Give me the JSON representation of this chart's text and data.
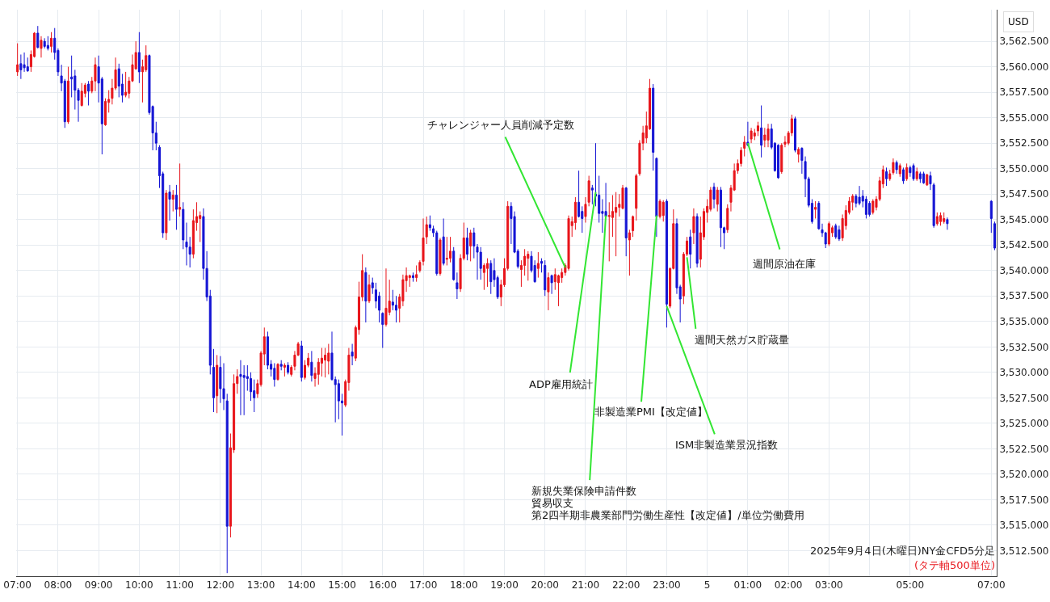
{
  "chart_data": {
    "type": "candlestick",
    "ylabel": "USD",
    "colors": [
      "#e8151b",
      "#1414d4",
      "#1414d4",
      "#1414d4",
      "#e8151b",
      "#e8151b",
      "#1414d4",
      "#e8151b",
      "#1414d4",
      "#1414d4",
      "#e8151b",
      "#1414d4",
      "#1414d4",
      "#1414d4",
      "#1414d4",
      "#e8151b",
      "#1414d4",
      "#1414d4",
      "#1414d4",
      "#e8151b",
      "#e8151b",
      "#1414d4",
      "#e8151b",
      "#e8151b",
      "#1414d4",
      "#1414d4",
      "#e8151b",
      "#e8151b",
      "#e8151b",
      "#e8151b",
      "#1414d4",
      "#1414d4",
      "#e8151b",
      "#e8151b",
      "#e8151b",
      "#e8151b",
      "#1414d4",
      "#e8151b",
      "#e8151b",
      "#1414d4",
      "#1414d4",
      "#1414d4",
      "#1414d4",
      "#1414d4",
      "#e8151b",
      "#1414d4",
      "#e8151b",
      "#1414d4",
      "#e8151b",
      "#1414d4",
      "#1414d4",
      "#1414d4",
      "#e8151b",
      "#e8151b",
      "#e8151b",
      "#1414d4",
      "#1414d4",
      "#1414d4",
      "#1414d4",
      "#e8151b",
      "#1414d4",
      "#1414d4",
      "#1414d4",
      "#e8151b",
      "#e8151b",
      "#e8151b",
      "#1414d4",
      "#1414d4",
      "#1414d4",
      "#1414d4",
      "#1414d4",
      "#e8151b",
      "#e8151b",
      "#e8151b",
      "#1414d4",
      "#1414d4",
      "#1414d4",
      "#e8151b",
      "#1414d4",
      "#e8151b",
      "#1414d4",
      "#e8151b",
      "#e8151b",
      "#e8151b",
      "#1414d4",
      "#e8151b",
      "#e8151b",
      "#1414d4",
      "#e8151b",
      "#e8151b",
      "#e8151b",
      "#e8151b",
      "#e8151b",
      "#1414d4",
      "#1414d4",
      "#1414d4",
      "#1414d4",
      "#e8151b",
      "#e8151b",
      "#1414d4",
      "#e8151b",
      "#e8151b",
      "#e8151b",
      "#1414d4",
      "#e8151b",
      "#1414d4",
      "#1414d4",
      "#1414d4",
      "#1414d4",
      "#e8151b",
      "#e8151b",
      "#1414d4",
      "#1414d4",
      "#e8151b",
      "#e8151b",
      "#e8151b",
      "#e8151b",
      "#1414d4",
      "#e8151b",
      "#e8151b",
      "#e8151b",
      "#e8151b",
      "#1414d4",
      "#1414d4",
      "#1414d4",
      "#e8151b",
      "#1414d4",
      "#e8151b",
      "#e8151b",
      "#1414d4",
      "#1414d4",
      "#e8151b",
      "#e8151b",
      "#1414d4",
      "#e8151b",
      "#1414d4",
      "#1414d4",
      "#1414d4",
      "#e8151b",
      "#e8151b",
      "#1414d4",
      "#1414d4",
      "#1414d4",
      "#e8151b",
      "#e8151b",
      "#e8151b",
      "#1414d4",
      "#1414d4",
      "#1414d4",
      "#e8151b",
      "#e8151b",
      "#e8151b",
      "#1414d4",
      "#1414d4",
      "#e8151b",
      "#1414d4",
      "#1414d4",
      "#e8151b",
      "#1414d4",
      "#e8151b",
      "#e8151b",
      "#e8151b",
      "#e8151b",
      "#e8151b",
      "#e8151b",
      "#e8151b",
      "#1414d4",
      "#1414d4",
      "#e8151b",
      "#e8151b",
      "#1414d4",
      "#1414d4",
      "#1414d4",
      "#1414d4",
      "#1414d4",
      "#e8151b",
      "#e8151b",
      "#e8151b",
      "#e8151b",
      "#e8151b",
      "#1414d4",
      "#e8151b",
      "#e8151b",
      "#e8151b",
      "#e8151b",
      "#e8151b",
      "#e8151b",
      "#e8151b",
      "#1414d4",
      "#1414d4",
      "#e8151b",
      "#e8151b",
      "#1414d4",
      "#e8151b",
      "#e8151b",
      "#1414d4",
      "#1414d4",
      "#e8151b",
      "#e8151b",
      "#1414d4",
      "#e8151b",
      "#1414d4",
      "#e8151b",
      "#e8151b",
      "#e8151b",
      "#e8151b",
      "#1414d4",
      "#e8151b",
      "#1414d4",
      "#1414d4",
      "#e8151b",
      "#e8151b",
      "#e8151b",
      "#e8151b",
      "#e8151b",
      "#e8151b",
      "#1414d4",
      "#e8151b",
      "#e8151b",
      "#e8151b",
      "#1414d4",
      "#e8151b",
      "#e8151b",
      "#1414d4",
      "#1414d4",
      "#1414d4",
      "#e8151b",
      "#e8151b",
      "#e8151b",
      "#e8151b",
      "#1414d4",
      "#e8151b",
      "#1414d4",
      "#1414d4",
      "#1414d4",
      "#1414d4",
      "#e8151b",
      "#1414d4",
      "#1414d4",
      "#1414d4",
      "#e8151b",
      "#e8151b",
      "#1414d4",
      "#1414d4",
      "#e8151b",
      "#e8151b",
      "#e8151b",
      "#e8151b",
      "#1414d4",
      "#1414d4",
      "#1414d4",
      "#1414d4",
      "#1414d4",
      "#e8151b",
      "#e8151b",
      "#e8151b",
      "#e8151b",
      "#1414d4",
      "#e8151b",
      "#e8151b",
      "#1414d4",
      "#e8151b",
      "#1414d4",
      "#e8151b",
      "#1414d4",
      "#1414d4",
      "#e8151b",
      "#1414d4",
      "#1414d4",
      "#e8151b",
      "#1414d4",
      "#1414d4",
      "#e8151b",
      "#e8151b",
      "#e8151b",
      "#1414d4",
      "#1414d4",
      "#1414d4"
    ],
    "grid": true,
    "xlim": [
      "2025-09-04T06:58",
      "2025-09-05T07:08"
    ],
    "ylim": [
      3510.0,
      3565.6
    ],
    "xticks": [
      {
        "value": "2025-09-04T07:00",
        "label": "07:00"
      },
      {
        "value": "2025-09-04T08:00",
        "label": "08:00"
      },
      {
        "value": "2025-09-04T09:00",
        "label": "09:00"
      },
      {
        "value": "2025-09-04T10:00",
        "label": "10:00"
      },
      {
        "value": "2025-09-04T11:00",
        "label": "11:00"
      },
      {
        "value": "2025-09-04T12:00",
        "label": "12:00"
      },
      {
        "value": "2025-09-04T13:00",
        "label": "13:00"
      },
      {
        "value": "2025-09-04T14:00",
        "label": "14:00"
      },
      {
        "value": "2025-09-04T15:00",
        "label": "15:00"
      },
      {
        "value": "2025-09-04T16:00",
        "label": "16:00"
      },
      {
        "value": "2025-09-04T17:00",
        "label": "17:00"
      },
      {
        "value": "2025-09-04T18:00",
        "label": "18:00"
      },
      {
        "value": "2025-09-04T19:00",
        "label": "19:00"
      },
      {
        "value": "2025-09-04T20:00",
        "label": "20:00"
      },
      {
        "value": "2025-09-04T21:00",
        "label": "21:00"
      },
      {
        "value": "2025-09-04T22:00",
        "label": "22:00"
      },
      {
        "value": "2025-09-04T23:00",
        "label": "23:00"
      },
      {
        "value": "2025-09-05T00:00",
        "label": "5"
      },
      {
        "value": "2025-09-05T01:00",
        "label": "01:00"
      },
      {
        "value": "2025-09-05T02:00",
        "label": "02:00"
      },
      {
        "value": "2025-09-05T03:00",
        "label": "03:00"
      },
      {
        "value": "2025-09-05T04:00",
        "label": null
      },
      {
        "value": "2025-09-05T05:00",
        "label": "05:00"
      },
      {
        "value": "2025-09-05T07:00",
        "label": "07:00"
      }
    ],
    "yticks": [
      {
        "value": 3512.5,
        "label": "3,512.500"
      },
      {
        "value": 3515,
        "label": "3,515.000"
      },
      {
        "value": 3517.5,
        "label": "3,517.500"
      },
      {
        "value": 3520,
        "label": "3,520.000"
      },
      {
        "value": 3522.5,
        "label": "3,522.500"
      },
      {
        "value": 3525,
        "label": "3,525.000"
      },
      {
        "value": 3527.5,
        "label": "3,527.500"
      },
      {
        "value": 3530,
        "label": "3,530.000"
      },
      {
        "value": 3532.5,
        "label": "3,532.500"
      },
      {
        "value": 3535,
        "label": "3,535.000"
      },
      {
        "value": 3537.5,
        "label": "3,537.500"
      },
      {
        "value": 3540,
        "label": "3,540.000"
      },
      {
        "value": 3542.5,
        "label": "3,542.500"
      },
      {
        "value": 3545,
        "label": "3,545.000"
      },
      {
        "value": 3547.5,
        "label": "3,547.500"
      },
      {
        "value": 3550,
        "label": "3,550.000"
      },
      {
        "value": 3552.5,
        "label": "3,552.500"
      },
      {
        "value": 3555,
        "label": "3,555.000"
      },
      {
        "value": 3557.5,
        "label": "3,557.500"
      },
      {
        "value": 3560,
        "label": "3,560.000"
      },
      {
        "value": 3562.5,
        "label": "3,562.500"
      }
    ],
    "annotations": [
      "2025年9月4日(木曜日)NY金CFD5分足",
      "(タテ軸500単位)",
      {
        "text": "チャレンジャー人員削減予定数",
        "x": "2025-09-04T20:30",
        "y": 3540.3
      },
      {
        "text": "ADP雇用統計",
        "x": "2025-09-04T21:15",
        "y": 3547.7
      },
      {
        "text": "新規失業保険申請件数",
        "x": "2025-09-04T21:30",
        "y": 3545.4
      },
      "貿易収支",
      "第2四半期非農業部門労働生産性【改定値】/単位労働費用",
      {
        "text": "非製造業PMI【改定値】",
        "x": "2025-09-04T22:45",
        "y": 3545.4
      },
      {
        "text": "ISM非製造業景況指数",
        "x": "2025-09-04T23:00",
        "y": 3536.5
      },
      {
        "text": "週間天然ガス貯蔵量",
        "x": "2025-09-04T23:30",
        "y": 3541.3
      },
      {
        "text": "週間原油在庫",
        "x": "2025-09-05T01:00",
        "y": 3552.5
      }
    ],
    "x": [
      "2025-09-04T07:00",
      "2025-09-04T07:05",
      "2025-09-04T07:10",
      "2025-09-04T07:15",
      "2025-09-04T07:20",
      "2025-09-04T07:25",
      "2025-09-04T07:30",
      "2025-09-04T07:35",
      "2025-09-04T07:40",
      "2025-09-04T07:45",
      "2025-09-04T07:50",
      "2025-09-04T07:55",
      "2025-09-04T08:00",
      "2025-09-04T08:05",
      "2025-09-04T08:10",
      "2025-09-04T08:15",
      "2025-09-04T08:20",
      "2025-09-04T08:25",
      "2025-09-04T08:30",
      "2025-09-04T08:35",
      "2025-09-04T08:40",
      "2025-09-04T08:45",
      "2025-09-04T08:50",
      "2025-09-04T08:55",
      "2025-09-04T09:00",
      "2025-09-04T09:05",
      "2025-09-04T09:10",
      "2025-09-04T09:15",
      "2025-09-04T09:20",
      "2025-09-04T09:25",
      "2025-09-04T09:30",
      "2025-09-04T09:35",
      "2025-09-04T09:40",
      "2025-09-04T09:45",
      "2025-09-04T09:50",
      "2025-09-04T09:55",
      "2025-09-04T10:00",
      "2025-09-04T10:05",
      "2025-09-04T10:10",
      "2025-09-04T10:15",
      "2025-09-04T10:20",
      "2025-09-04T10:25",
      "2025-09-04T10:30",
      "2025-09-04T10:35",
      "2025-09-04T10:40",
      "2025-09-04T10:45",
      "2025-09-04T10:50",
      "2025-09-04T10:55",
      "2025-09-04T11:00",
      "2025-09-04T11:05",
      "2025-09-04T11:10",
      "2025-09-04T11:15",
      "2025-09-04T11:20",
      "2025-09-04T11:25",
      "2025-09-04T11:30",
      "2025-09-04T11:35",
      "2025-09-04T11:40",
      "2025-09-04T11:45",
      "2025-09-04T11:50",
      "2025-09-04T11:55",
      "2025-09-04T12:00",
      "2025-09-04T12:05",
      "2025-09-04T12:10",
      "2025-09-04T12:15",
      "2025-09-04T12:20",
      "2025-09-04T12:25",
      "2025-09-04T12:30",
      "2025-09-04T12:35",
      "2025-09-04T12:40",
      "2025-09-04T12:45",
      "2025-09-04T12:50",
      "2025-09-04T12:55",
      "2025-09-04T13:00",
      "2025-09-04T13:05",
      "2025-09-04T13:10",
      "2025-09-04T13:15",
      "2025-09-04T13:20",
      "2025-09-04T13:25",
      "2025-09-04T13:30",
      "2025-09-04T13:35",
      "2025-09-04T13:40",
      "2025-09-04T13:45",
      "2025-09-04T13:50",
      "2025-09-04T13:55",
      "2025-09-04T14:00",
      "2025-09-04T14:05",
      "2025-09-04T14:10",
      "2025-09-04T14:15",
      "2025-09-04T14:20",
      "2025-09-04T14:25",
      "2025-09-04T14:30",
      "2025-09-04T14:35",
      "2025-09-04T14:40",
      "2025-09-04T14:45",
      "2025-09-04T14:50",
      "2025-09-04T14:55",
      "2025-09-04T15:00",
      "2025-09-04T15:05",
      "2025-09-04T15:10",
      "2025-09-04T15:15",
      "2025-09-04T15:20",
      "2025-09-04T15:25",
      "2025-09-04T15:30",
      "2025-09-04T15:35",
      "2025-09-04T15:40",
      "2025-09-04T15:45",
      "2025-09-04T15:50",
      "2025-09-04T15:55",
      "2025-09-04T16:00",
      "2025-09-04T16:05",
      "2025-09-04T16:10",
      "2025-09-04T16:15",
      "2025-09-04T16:20",
      "2025-09-04T16:25",
      "2025-09-04T16:30",
      "2025-09-04T16:35",
      "2025-09-04T16:40",
      "2025-09-04T16:45",
      "2025-09-04T16:50",
      "2025-09-04T16:55",
      "2025-09-04T17:00",
      "2025-09-04T17:05",
      "2025-09-04T17:10",
      "2025-09-04T17:15",
      "2025-09-04T17:20",
      "2025-09-04T17:25",
      "2025-09-04T17:30",
      "2025-09-04T17:35",
      "2025-09-04T17:40",
      "2025-09-04T17:45",
      "2025-09-04T17:50",
      "2025-09-04T17:55",
      "2025-09-04T18:00",
      "2025-09-04T18:05",
      "2025-09-04T18:10",
      "2025-09-04T18:15",
      "2025-09-04T18:20",
      "2025-09-04T18:25",
      "2025-09-04T18:30",
      "2025-09-04T18:35",
      "2025-09-04T18:40",
      "2025-09-04T18:45",
      "2025-09-04T18:50",
      "2025-09-04T18:55",
      "2025-09-04T19:00",
      "2025-09-04T19:05",
      "2025-09-04T19:10",
      "2025-09-04T19:15",
      "2025-09-04T19:20",
      "2025-09-04T19:25",
      "2025-09-04T19:30",
      "2025-09-04T19:35",
      "2025-09-04T19:40",
      "2025-09-04T19:45",
      "2025-09-04T19:50",
      "2025-09-04T19:55",
      "2025-09-04T20:00",
      "2025-09-04T20:05",
      "2025-09-04T20:10",
      "2025-09-04T20:15",
      "2025-09-04T20:20",
      "2025-09-04T20:25",
      "2025-09-04T20:30",
      "2025-09-04T20:35",
      "2025-09-04T20:40",
      "2025-09-04T20:45",
      "2025-09-04T20:50",
      "2025-09-04T20:55",
      "2025-09-04T21:00",
      "2025-09-04T21:05",
      "2025-09-04T21:10",
      "2025-09-04T21:15",
      "2025-09-04T21:20",
      "2025-09-04T21:25",
      "2025-09-04T21:30",
      "2025-09-04T21:35",
      "2025-09-04T21:40",
      "2025-09-04T21:45",
      "2025-09-04T21:50",
      "2025-09-04T21:55",
      "2025-09-04T22:00",
      "2025-09-04T22:05",
      "2025-09-04T22:10",
      "2025-09-04T22:15",
      "2025-09-04T22:20",
      "2025-09-04T22:25",
      "2025-09-04T22:30",
      "2025-09-04T22:35",
      "2025-09-04T22:40",
      "2025-09-04T22:45",
      "2025-09-04T22:50",
      "2025-09-04T22:55",
      "2025-09-04T23:00",
      "2025-09-04T23:05",
      "2025-09-04T23:10",
      "2025-09-04T23:15",
      "2025-09-04T23:20",
      "2025-09-04T23:25",
      "2025-09-04T23:30",
      "2025-09-04T23:35",
      "2025-09-04T23:40",
      "2025-09-04T23:45",
      "2025-09-04T23:50",
      "2025-09-04T23:55",
      "2025-09-05T00:00",
      "2025-09-05T00:05",
      "2025-09-05T00:10",
      "2025-09-05T00:15",
      "2025-09-05T00:20",
      "2025-09-05T00:25",
      "2025-09-05T00:30",
      "2025-09-05T00:35",
      "2025-09-05T00:40",
      "2025-09-05T00:45",
      "2025-09-05T00:50",
      "2025-09-05T00:55",
      "2025-09-05T01:00",
      "2025-09-05T01:05",
      "2025-09-05T01:10",
      "2025-09-05T01:15",
      "2025-09-05T01:20",
      "2025-09-05T01:25",
      "2025-09-05T01:30",
      "2025-09-05T01:35",
      "2025-09-05T01:40",
      "2025-09-05T01:45",
      "2025-09-05T01:50",
      "2025-09-05T01:55",
      "2025-09-05T02:00",
      "2025-09-05T02:05",
      "2025-09-05T02:10",
      "2025-09-05T02:15",
      "2025-09-05T02:20",
      "2025-09-05T02:25",
      "2025-09-05T02:30",
      "2025-09-05T02:35",
      "2025-09-05T02:40",
      "2025-09-05T02:45",
      "2025-09-05T02:50",
      "2025-09-05T02:55",
      "2025-09-05T03:00",
      "2025-09-05T03:05",
      "2025-09-05T03:10",
      "2025-09-05T03:15",
      "2025-09-05T03:20",
      "2025-09-05T03:25",
      "2025-09-05T03:30",
      "2025-09-05T03:35",
      "2025-09-05T03:40",
      "2025-09-05T03:45",
      "2025-09-05T03:50",
      "2025-09-05T03:55",
      "2025-09-05T04:00",
      "2025-09-05T04:05",
      "2025-09-05T04:10",
      "2025-09-05T04:15",
      "2025-09-05T04:20",
      "2025-09-05T04:25",
      "2025-09-05T04:30",
      "2025-09-05T04:35",
      "2025-09-05T04:40",
      "2025-09-05T04:45",
      "2025-09-05T04:50",
      "2025-09-05T04:55",
      "2025-09-05T05:00",
      "2025-09-05T05:05",
      "2025-09-05T05:10",
      "2025-09-05T05:15",
      "2025-09-05T05:20",
      "2025-09-05T05:25",
      "2025-09-05T05:30",
      "2025-09-05T05:35",
      "2025-09-05T05:40",
      "2025-09-05T05:45",
      "2025-09-05T05:50",
      "2025-09-05T05:55",
      "2025-09-05T07:00",
      "2025-09-05T07:05"
    ],
    "ohlc": [
      [
        3559.5,
        3562.3,
        3559.1,
        3560.2
      ],
      [
        3560.3,
        3561.2,
        3558.8,
        3559.7
      ],
      [
        3560.2,
        3561.4,
        3559.5,
        3559.9
      ],
      [
        3560.0,
        3560.9,
        3559.5,
        3559.6
      ],
      [
        3560.0,
        3561.6,
        3559.5,
        3561.2
      ],
      [
        3561.0,
        3563.4,
        3560.9,
        3563.3
      ],
      [
        3563.3,
        3564.0,
        3561.8,
        3561.9
      ],
      [
        3561.8,
        3563.0,
        3560.9,
        3562.6
      ],
      [
        3562.5,
        3562.8,
        3561.8,
        3562.0
      ],
      [
        3562.1,
        3563.0,
        3561.6,
        3561.8
      ],
      [
        3562.0,
        3563.4,
        3561.4,
        3562.8
      ],
      [
        3562.8,
        3563.8,
        3560.7,
        3561.4
      ],
      [
        3561.6,
        3561.8,
        3559.1,
        3559.5
      ],
      [
        3559.1,
        3560.2,
        3557.6,
        3558.4
      ],
      [
        3558.6,
        3558.8,
        3554.0,
        3554.6
      ],
      [
        3554.6,
        3560.0,
        3554.4,
        3558.6
      ],
      [
        3559.0,
        3561.1,
        3557.0,
        3558.8
      ],
      [
        3559.1,
        3559.7,
        3555.8,
        3557.7
      ],
      [
        3557.7,
        3557.9,
        3554.6,
        3556.7
      ],
      [
        3556.2,
        3558.4,
        3556.1,
        3557.6
      ],
      [
        3557.4,
        3558.4,
        3557.0,
        3558.2
      ],
      [
        3558.3,
        3558.6,
        3556.2,
        3557.6
      ],
      [
        3557.6,
        3559.0,
        3557.4,
        3558.6
      ],
      [
        3558.6,
        3560.9,
        3557.6,
        3560.2
      ],
      [
        3560.0,
        3561.1,
        3556.5,
        3558.4
      ],
      [
        3558.8,
        3559.0,
        3551.4,
        3554.4
      ],
      [
        3554.3,
        3556.9,
        3554.2,
        3556.6
      ],
      [
        3556.5,
        3557.7,
        3555.5,
        3556.8
      ],
      [
        3556.9,
        3558.8,
        3556.3,
        3557.9
      ],
      [
        3557.9,
        3560.9,
        3557.7,
        3559.7
      ],
      [
        3559.8,
        3560.3,
        3557.0,
        3558.1
      ],
      [
        3558.3,
        3559.3,
        3556.5,
        3557.2
      ],
      [
        3557.2,
        3559.5,
        3557.0,
        3557.5
      ],
      [
        3557.4,
        3559.0,
        3556.9,
        3558.6
      ],
      [
        3558.6,
        3561.2,
        3558.5,
        3560.2
      ],
      [
        3559.8,
        3562.5,
        3559.7,
        3561.4
      ],
      [
        3561.4,
        3563.4,
        3558.4,
        3559.5
      ],
      [
        3559.5,
        3560.7,
        3556.5,
        3560.0
      ],
      [
        3559.7,
        3562.1,
        3559.5,
        3561.1
      ],
      [
        3561.1,
        3561.2,
        3555.3,
        3555.5
      ],
      [
        3556.1,
        3556.2,
        3551.8,
        3553.5
      ],
      [
        3553.5,
        3554.6,
        3551.8,
        3552.5
      ],
      [
        3552.1,
        3552.3,
        3548.1,
        3549.3
      ],
      [
        3549.5,
        3549.7,
        3543.2,
        3543.7
      ],
      [
        3543.7,
        3547.9,
        3543.0,
        3547.6
      ],
      [
        3547.7,
        3548.4,
        3544.9,
        3547.0
      ],
      [
        3547.0,
        3547.9,
        3545.8,
        3547.4
      ],
      [
        3547.4,
        3548.4,
        3544.0,
        3546.0
      ],
      [
        3546.0,
        3550.5,
        3545.3,
        3546.2
      ],
      [
        3546.0,
        3546.7,
        3542.1,
        3543.0
      ],
      [
        3542.8,
        3544.7,
        3540.5,
        3542.3
      ],
      [
        3542.3,
        3543.3,
        3540.3,
        3541.6
      ],
      [
        3541.6,
        3546.0,
        3541.2,
        3544.9
      ],
      [
        3544.7,
        3546.7,
        3543.9,
        3545.3
      ],
      [
        3545.1,
        3545.8,
        3542.8,
        3545.4
      ],
      [
        3545.3,
        3546.1,
        3539.1,
        3540.2
      ],
      [
        3540.2,
        3541.9,
        3537.0,
        3537.4
      ],
      [
        3537.5,
        3538.1,
        3529.8,
        3530.7
      ],
      [
        3530.5,
        3532.3,
        3526.1,
        3527.5
      ],
      [
        3527.7,
        3531.7,
        3526.0,
        3530.7
      ],
      [
        3530.5,
        3531.6,
        3527.0,
        3528.4
      ],
      [
        3528.4,
        3530.9,
        3526.3,
        3527.4
      ],
      [
        3527.2,
        3527.9,
        3510.3,
        3514.9
      ],
      [
        3514.9,
        3524.0,
        3513.8,
        3522.6
      ],
      [
        3522.4,
        3529.8,
        3522.1,
        3528.9
      ],
      [
        3528.9,
        3530.3,
        3527.9,
        3529.6
      ],
      [
        3529.8,
        3531.2,
        3525.8,
        3529.6
      ],
      [
        3529.7,
        3530.7,
        3525.8,
        3529.5
      ],
      [
        3529.6,
        3530.7,
        3528.2,
        3529.4
      ],
      [
        3529.4,
        3530.0,
        3527.2,
        3528.1
      ],
      [
        3528.2,
        3529.3,
        3526.1,
        3527.5
      ],
      [
        3527.9,
        3529.3,
        3527.5,
        3528.9
      ],
      [
        3528.8,
        3532.1,
        3528.6,
        3531.9
      ],
      [
        3531.8,
        3534.4,
        3530.7,
        3533.5
      ],
      [
        3533.5,
        3534.0,
        3530.3,
        3530.7
      ],
      [
        3530.8,
        3531.2,
        3529.6,
        3530.3
      ],
      [
        3530.4,
        3530.9,
        3528.6,
        3529.3
      ],
      [
        3529.3,
        3530.9,
        3529.2,
        3530.8
      ],
      [
        3530.8,
        3531.2,
        3530.2,
        3530.6
      ],
      [
        3530.5,
        3530.9,
        3529.6,
        3530.7
      ],
      [
        3530.7,
        3531.0,
        3529.8,
        3530.0
      ],
      [
        3529.8,
        3530.7,
        3529.6,
        3530.5
      ],
      [
        3530.6,
        3532.1,
        3530.2,
        3531.7
      ],
      [
        3531.7,
        3533.0,
        3531.6,
        3532.8
      ],
      [
        3532.6,
        3533.1,
        3529.1,
        3529.5
      ],
      [
        3529.5,
        3531.2,
        3529.3,
        3530.7
      ],
      [
        3530.7,
        3531.9,
        3530.5,
        3531.4
      ],
      [
        3531.0,
        3532.1,
        3529.1,
        3529.7
      ],
      [
        3529.4,
        3530.5,
        3528.6,
        3529.9
      ],
      [
        3529.8,
        3531.4,
        3528.8,
        3531.0
      ],
      [
        3530.9,
        3532.4,
        3529.6,
        3531.4
      ],
      [
        3531.2,
        3532.4,
        3529.5,
        3531.7
      ],
      [
        3531.1,
        3532.8,
        3529.8,
        3531.9
      ],
      [
        3531.9,
        3534.0,
        3529.2,
        3529.3
      ],
      [
        3529.3,
        3529.6,
        3525.1,
        3528.8
      ],
      [
        3528.9,
        3529.3,
        3525.4,
        3527.2
      ],
      [
        3527.2,
        3527.9,
        3523.8,
        3527.0
      ],
      [
        3526.8,
        3529.3,
        3526.6,
        3529.1
      ],
      [
        3529.0,
        3532.4,
        3528.2,
        3531.7
      ],
      [
        3532.0,
        3532.8,
        3530.7,
        3531.6
      ],
      [
        3531.4,
        3534.6,
        3531.1,
        3534.4
      ],
      [
        3534.2,
        3538.9,
        3533.7,
        3537.4
      ],
      [
        3537.4,
        3541.6,
        3537.0,
        3540.0
      ],
      [
        3539.8,
        3540.3,
        3534.9,
        3537.0
      ],
      [
        3537.0,
        3539.6,
        3536.8,
        3538.6
      ],
      [
        3538.8,
        3539.3,
        3537.7,
        3538.3
      ],
      [
        3538.1,
        3538.8,
        3536.3,
        3537.0
      ],
      [
        3537.5,
        3537.9,
        3534.9,
        3536.1
      ],
      [
        3535.8,
        3535.9,
        3532.4,
        3534.7
      ],
      [
        3534.7,
        3540.2,
        3534.5,
        3536.3
      ],
      [
        3535.9,
        3539.1,
        3535.6,
        3537.0
      ],
      [
        3536.9,
        3538.1,
        3536.1,
        3536.6
      ],
      [
        3536.6,
        3537.5,
        3534.9,
        3536.1
      ],
      [
        3536.3,
        3537.7,
        3534.9,
        3537.4
      ],
      [
        3537.0,
        3539.6,
        3536.5,
        3539.1
      ],
      [
        3539.0,
        3540.3,
        3537.9,
        3539.5
      ],
      [
        3539.3,
        3539.6,
        3538.4,
        3539.5
      ],
      [
        3539.5,
        3539.8,
        3538.9,
        3539.3
      ],
      [
        3539.3,
        3540.5,
        3538.9,
        3539.6
      ],
      [
        3540.0,
        3541.0,
        3539.8,
        3540.8
      ],
      [
        3540.9,
        3545.1,
        3540.5,
        3543.2
      ],
      [
        3543.3,
        3545.3,
        3542.6,
        3544.5
      ],
      [
        3544.5,
        3545.4,
        3543.9,
        3544.2
      ],
      [
        3544.1,
        3544.4,
        3543.3,
        3543.7
      ],
      [
        3543.7,
        3543.9,
        3539.5,
        3539.7
      ],
      [
        3539.7,
        3543.2,
        3539.5,
        3543.0
      ],
      [
        3543.3,
        3545.1,
        3540.5,
        3540.7
      ],
      [
        3541.1,
        3543.3,
        3540.5,
        3541.2
      ],
      [
        3541.2,
        3543.3,
        3540.8,
        3541.9
      ],
      [
        3541.9,
        3542.3,
        3539.0,
        3539.1
      ],
      [
        3538.8,
        3539.8,
        3537.2,
        3538.2
      ],
      [
        3538.2,
        3541.6,
        3537.9,
        3541.2
      ],
      [
        3541.2,
        3544.7,
        3541.0,
        3543.2
      ],
      [
        3543.2,
        3544.2,
        3541.0,
        3541.6
      ],
      [
        3542.4,
        3544.0,
        3540.9,
        3543.7
      ],
      [
        3543.7,
        3544.2,
        3541.2,
        3542.4
      ],
      [
        3542.3,
        3542.6,
        3539.1,
        3541.8
      ],
      [
        3541.8,
        3542.3,
        3539.1,
        3540.2
      ],
      [
        3539.8,
        3540.7,
        3538.1,
        3540.5
      ],
      [
        3540.2,
        3541.2,
        3538.4,
        3540.7
      ],
      [
        3540.7,
        3541.0,
        3537.7,
        3538.9
      ],
      [
        3540.0,
        3541.2,
        3538.4,
        3539.1
      ],
      [
        3539.3,
        3539.5,
        3537.2,
        3537.4
      ],
      [
        3537.4,
        3539.1,
        3536.5,
        3538.6
      ],
      [
        3538.6,
        3541.2,
        3538.4,
        3540.2
      ],
      [
        3540.2,
        3546.8,
        3540.0,
        3546.3
      ],
      [
        3546.3,
        3546.7,
        3542.6,
        3545.1
      ],
      [
        3545.3,
        3545.8,
        3541.7,
        3541.8
      ],
      [
        3541.9,
        3542.1,
        3540.2,
        3540.4
      ],
      [
        3540.1,
        3541.0,
        3538.4,
        3540.5
      ],
      [
        3540.5,
        3542.1,
        3539.5,
        3541.4
      ],
      [
        3541.2,
        3541.9,
        3539.0,
        3541.6
      ],
      [
        3541.4,
        3541.9,
        3539.8,
        3540.0
      ],
      [
        3540.5,
        3541.0,
        3538.8,
        3538.9
      ],
      [
        3540.2,
        3541.8,
        3539.3,
        3540.7
      ],
      [
        3540.9,
        3541.2,
        3539.8,
        3540.7
      ],
      [
        3540.5,
        3541.0,
        3537.5,
        3538.1
      ],
      [
        3537.9,
        3539.8,
        3536.1,
        3539.3
      ],
      [
        3539.5,
        3539.6,
        3537.7,
        3538.8
      ],
      [
        3538.9,
        3540.2,
        3538.1,
        3539.6
      ],
      [
        3538.8,
        3539.6,
        3536.5,
        3539.5
      ],
      [
        3539.3,
        3540.2,
        3538.8,
        3539.8
      ],
      [
        3539.8,
        3540.7,
        3539.5,
        3540.5
      ],
      [
        3540.2,
        3545.4,
        3540.0,
        3545.1
      ],
      [
        3544.4,
        3545.3,
        3543.3,
        3544.8
      ],
      [
        3544.7,
        3547.2,
        3544.0,
        3546.7
      ],
      [
        3546.7,
        3549.8,
        3545.2,
        3545.3
      ],
      [
        3545.8,
        3546.3,
        3543.7,
        3545.1
      ],
      [
        3545.3,
        3547.2,
        3544.7,
        3546.5
      ],
      [
        3546.7,
        3549.3,
        3546.3,
        3548.8
      ],
      [
        3548.1,
        3548.4,
        3546.5,
        3547.9
      ],
      [
        3547.5,
        3552.5,
        3546.3,
        3547.3
      ],
      [
        3547.4,
        3549.3,
        3544.7,
        3545.6
      ],
      [
        3545.8,
        3547.0,
        3543.7,
        3545.6
      ],
      [
        3545.8,
        3548.6,
        3545.2,
        3545.3
      ],
      [
        3545.3,
        3546.7,
        3540.9,
        3545.4
      ],
      [
        3545.2,
        3547.4,
        3543.3,
        3545.8
      ],
      [
        3545.7,
        3547.7,
        3541.4,
        3546.2
      ],
      [
        3546.2,
        3547.5,
        3545.3,
        3546.5
      ],
      [
        3546.1,
        3548.4,
        3546.0,
        3548.1
      ],
      [
        3548.1,
        3548.2,
        3541.4,
        3543.2
      ],
      [
        3543.0,
        3544.0,
        3539.5,
        3543.7
      ],
      [
        3543.9,
        3545.4,
        3543.3,
        3545.3
      ],
      [
        3546.1,
        3549.5,
        3544.9,
        3549.3
      ],
      [
        3549.5,
        3552.8,
        3549.3,
        3552.5
      ],
      [
        3552.5,
        3554.2,
        3551.8,
        3553.5
      ],
      [
        3553.0,
        3555.6,
        3552.5,
        3554.2
      ],
      [
        3553.9,
        3558.8,
        3553.8,
        3557.9
      ],
      [
        3557.9,
        3558.3,
        3549.8,
        3551.6
      ],
      [
        3551.0,
        3551.1,
        3543.3,
        3545.3
      ],
      [
        3545.3,
        3547.0,
        3545.1,
        3546.8
      ],
      [
        3545.4,
        3546.9,
        3544.8,
        3546.7
      ],
      [
        3546.8,
        3547.0,
        3534.4,
        3536.7
      ],
      [
        3536.5,
        3540.3,
        3536.3,
        3540.2
      ],
      [
        3540.2,
        3546.0,
        3540.1,
        3544.6
      ],
      [
        3544.6,
        3545.1,
        3537.7,
        3538.3
      ],
      [
        3538.4,
        3538.6,
        3534.9,
        3537.2
      ],
      [
        3537.5,
        3541.8,
        3536.7,
        3541.6
      ],
      [
        3541.6,
        3543.3,
        3541.4,
        3542.9
      ],
      [
        3543.3,
        3544.0,
        3540.2,
        3541.6
      ],
      [
        3543.7,
        3546.1,
        3542.6,
        3545.3
      ],
      [
        3545.3,
        3545.6,
        3540.3,
        3540.7
      ],
      [
        3541.1,
        3545.3,
        3540.3,
        3543.7
      ],
      [
        3543.3,
        3546.1,
        3543.0,
        3545.8
      ],
      [
        3545.7,
        3547.0,
        3544.7,
        3546.3
      ],
      [
        3546.0,
        3548.2,
        3545.8,
        3547.9
      ],
      [
        3548.2,
        3548.6,
        3546.1,
        3547.0
      ],
      [
        3546.5,
        3548.2,
        3545.8,
        3547.9
      ],
      [
        3547.9,
        3548.2,
        3542.3,
        3544.2
      ],
      [
        3544.2,
        3544.3,
        3542.1,
        3543.7
      ],
      [
        3544.0,
        3546.5,
        3543.7,
        3546.1
      ],
      [
        3546.7,
        3548.4,
        3545.8,
        3548.1
      ],
      [
        3547.9,
        3550.5,
        3547.8,
        3549.8
      ],
      [
        3549.8,
        3550.9,
        3549.5,
        3550.5
      ],
      [
        3550.5,
        3552.1,
        3550.2,
        3551.8
      ],
      [
        3552.0,
        3553.2,
        3551.2,
        3552.6
      ],
      [
        3552.6,
        3554.6,
        3552.2,
        3552.3
      ],
      [
        3552.9,
        3554.0,
        3552.5,
        3553.7
      ],
      [
        3553.2,
        3553.9,
        3552.8,
        3553.5
      ],
      [
        3553.7,
        3554.6,
        3553.2,
        3554.2
      ],
      [
        3554.0,
        3556.2,
        3551.1,
        3552.3
      ],
      [
        3552.8,
        3554.0,
        3552.1,
        3553.3
      ],
      [
        3552.8,
        3554.4,
        3552.1,
        3553.9
      ],
      [
        3553.9,
        3554.4,
        3551.9,
        3552.1
      ],
      [
        3552.5,
        3552.6,
        3549.7,
        3549.8
      ],
      [
        3552.3,
        3552.4,
        3549.0,
        3549.1
      ],
      [
        3549.7,
        3552.5,
        3549.5,
        3552.3
      ],
      [
        3552.4,
        3553.2,
        3552.1,
        3552.6
      ],
      [
        3552.5,
        3553.7,
        3552.3,
        3553.5
      ],
      [
        3553.5,
        3555.3,
        3553.2,
        3554.9
      ],
      [
        3554.9,
        3555.1,
        3551.6,
        3551.8
      ],
      [
        3551.4,
        3552.1,
        3550.6,
        3551.9
      ],
      [
        3552.0,
        3552.1,
        3549.5,
        3550.8
      ],
      [
        3550.7,
        3551.2,
        3547.2,
        3549.0
      ],
      [
        3549.0,
        3549.2,
        3546.2,
        3546.4
      ],
      [
        3546.6,
        3547.0,
        3544.6,
        3544.8
      ],
      [
        3546.0,
        3546.8,
        3545.1,
        3546.2
      ],
      [
        3546.6,
        3546.8,
        3544.0,
        3544.1
      ],
      [
        3544.0,
        3544.6,
        3543.3,
        3543.7
      ],
      [
        3543.7,
        3543.8,
        3542.2,
        3542.6
      ],
      [
        3542.6,
        3544.8,
        3542.4,
        3544.6
      ],
      [
        3543.7,
        3544.4,
        3543.3,
        3544.2
      ],
      [
        3544.4,
        3544.6,
        3543.1,
        3543.3
      ],
      [
        3544.0,
        3544.4,
        3542.9,
        3543.1
      ],
      [
        3543.2,
        3545.5,
        3542.9,
        3545.1
      ],
      [
        3544.4,
        3546.4,
        3544.0,
        3545.9
      ],
      [
        3545.7,
        3547.2,
        3545.5,
        3546.8
      ],
      [
        3546.7,
        3547.5,
        3545.9,
        3547.3
      ],
      [
        3547.3,
        3547.5,
        3546.2,
        3546.6
      ],
      [
        3547.2,
        3548.3,
        3546.4,
        3546.6
      ],
      [
        3547.3,
        3547.9,
        3546.2,
        3546.8
      ],
      [
        3547.0,
        3547.3,
        3545.1,
        3545.5
      ],
      [
        3546.6,
        3546.8,
        3545.3,
        3545.5
      ],
      [
        3545.7,
        3547.0,
        3545.5,
        3546.8
      ],
      [
        3546.2,
        3547.3,
        3545.9,
        3547.0
      ],
      [
        3547.0,
        3549.2,
        3546.8,
        3548.8
      ],
      [
        3548.5,
        3550.3,
        3548.1,
        3549.9
      ],
      [
        3549.7,
        3550.1,
        3548.3,
        3549.0
      ],
      [
        3549.0,
        3549.9,
        3548.8,
        3549.5
      ],
      [
        3549.6,
        3551.0,
        3549.4,
        3550.6
      ],
      [
        3550.6,
        3550.8,
        3549.5,
        3549.9
      ],
      [
        3549.5,
        3550.5,
        3549.2,
        3550.3
      ],
      [
        3549.9,
        3550.1,
        3548.5,
        3548.8
      ],
      [
        3549.0,
        3550.5,
        3548.8,
        3550.1
      ],
      [
        3550.1,
        3550.3,
        3549.2,
        3549.6
      ],
      [
        3550.3,
        3550.5,
        3548.8,
        3549.0
      ],
      [
        3549.0,
        3550.1,
        3548.8,
        3549.7
      ],
      [
        3549.5,
        3549.7,
        3548.6,
        3549.0
      ],
      [
        3549.5,
        3549.7,
        3548.5,
        3548.6
      ],
      [
        3548.4,
        3549.5,
        3548.3,
        3549.4
      ],
      [
        3549.3,
        3549.7,
        3547.9,
        3548.5
      ],
      [
        3548.4,
        3548.6,
        3544.2,
        3544.4
      ],
      [
        3544.6,
        3545.7,
        3544.4,
        3545.3
      ],
      [
        3544.8,
        3545.7,
        3544.4,
        3545.4
      ],
      [
        3544.8,
        3545.7,
        3544.6,
        3545.1
      ],
      [
        3545.0,
        3545.2,
        3544.0,
        3544.6
      ],
      [
        3546.8,
        3546.9,
        3543.7,
        3545.1
      ],
      [
        3544.6,
        3544.8,
        3542.0,
        3542.2
      ]
    ]
  }
}
